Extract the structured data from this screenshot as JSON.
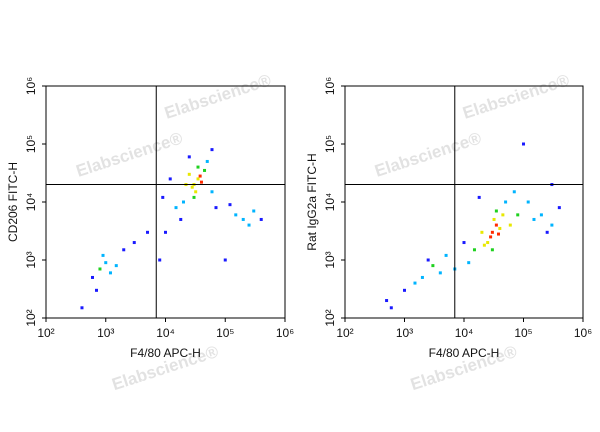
{
  "chart_data": [
    {
      "type": "scatter",
      "xlabel": "F4/80 APC-H",
      "ylabel": "CD206 FITC-H",
      "watermark": "Elabscience®",
      "xscale": "log",
      "yscale": "log",
      "xlim": [
        100,
        1000000
      ],
      "ylim": [
        100,
        1000000
      ],
      "xticks": [
        {
          "value": 100,
          "label": "10²"
        },
        {
          "value": 1000,
          "label": "10³"
        },
        {
          "value": 10000,
          "label": "10⁴"
        },
        {
          "value": 100000,
          "label": "10⁵"
        },
        {
          "value": 1000000,
          "label": "10⁶"
        }
      ],
      "yticks": [
        {
          "value": 100,
          "label": "10²"
        },
        {
          "value": 1000,
          "label": "10³"
        },
        {
          "value": 10000,
          "label": "10⁴"
        },
        {
          "value": 100000,
          "label": "10⁵"
        },
        {
          "value": 1000000,
          "label": "10⁶"
        }
      ],
      "gate": {
        "x": 7000,
        "y": 20000
      },
      "color": "#1a1aff",
      "x": [
        30000,
        35000,
        28000,
        40000,
        32000,
        25000,
        38000,
        30000,
        45000,
        22000,
        35000,
        20000,
        15000,
        50000,
        60000,
        12000,
        70000,
        18000,
        25000,
        9000,
        10000,
        150000,
        200000,
        300000,
        250000,
        400000,
        120000,
        800,
        1000,
        1200,
        900,
        600,
        1500,
        2000,
        700,
        5000,
        3000,
        8000,
        400,
        60000,
        100000
      ],
      "y": [
        20000,
        25000,
        18000,
        22000,
        15000,
        30000,
        28000,
        12000,
        35000,
        20000,
        40000,
        10000,
        8000,
        50000,
        15000,
        25000,
        8000,
        5000,
        60000,
        12000,
        3000,
        6000,
        5000,
        7000,
        4000,
        5000,
        9000,
        700,
        900,
        600,
        1200,
        500,
        800,
        1500,
        300,
        3000,
        2000,
        1000,
        150,
        80000,
        1000
      ]
    },
    {
      "type": "scatter",
      "xlabel": "F4/80 APC-H",
      "ylabel": "Rat IgG2a FITC-H",
      "watermark": "Elabscience®",
      "xscale": "log",
      "yscale": "log",
      "xlim": [
        100,
        1000000
      ],
      "ylim": [
        100,
        1000000
      ],
      "xticks": [
        {
          "value": 100,
          "label": "10²"
        },
        {
          "value": 1000,
          "label": "10³"
        },
        {
          "value": 10000,
          "label": "10⁴"
        },
        {
          "value": 100000,
          "label": "10⁵"
        },
        {
          "value": 1000000,
          "label": "10⁶"
        }
      ],
      "yticks": [
        {
          "value": 100,
          "label": "10²"
        },
        {
          "value": 1000,
          "label": "10³"
        },
        {
          "value": 10000,
          "label": "10⁴"
        },
        {
          "value": 100000,
          "label": "10⁵"
        },
        {
          "value": 1000000,
          "label": "10⁶"
        }
      ],
      "gate": {
        "x": 7000,
        "y": 20000
      },
      "color": "#1a1aff",
      "x": [
        30000,
        35000,
        28000,
        40000,
        25000,
        32000,
        38000,
        22000,
        45000,
        30000,
        20000,
        35000,
        15000,
        50000,
        60000,
        12000,
        80000,
        10000,
        18000,
        70000,
        150000,
        200000,
        300000,
        400000,
        250000,
        120000,
        3000,
        2000,
        5000,
        1500,
        1000,
        4000,
        7000,
        2500,
        500,
        100000,
        600,
        300000
      ],
      "y": [
        3000,
        4000,
        2500,
        3500,
        2000,
        5000,
        2800,
        1800,
        6000,
        1500,
        3000,
        7000,
        1500,
        10000,
        4000,
        900,
        6000,
        2000,
        12000,
        15000,
        5000,
        6000,
        4000,
        8000,
        3000,
        10000,
        800,
        500,
        1200,
        400,
        300,
        600,
        700,
        1000,
        200,
        100000,
        150,
        20000
      ]
    }
  ]
}
